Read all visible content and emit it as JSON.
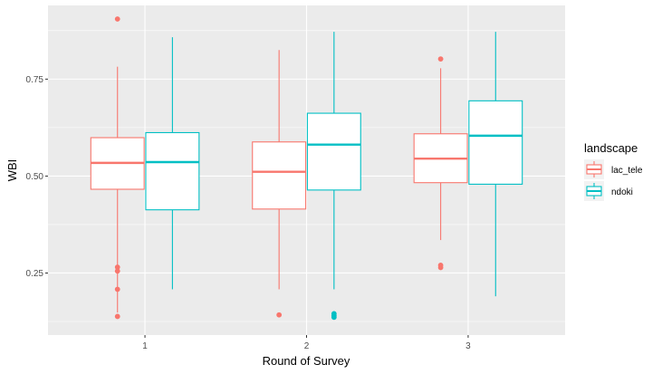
{
  "chart_data": {
    "type": "boxplot",
    "xlabel": "Round of Survey",
    "ylabel": "WBI",
    "categories": [
      "1",
      "2",
      "3"
    ],
    "ylim": [
      0.09,
      0.94
    ],
    "yticks": [
      0.25,
      0.5,
      0.75
    ],
    "ytick_labels": [
      "0.25",
      "0.50",
      "0.75"
    ],
    "grid": true,
    "legend": {
      "title": "landscape",
      "position": "right"
    },
    "series": [
      {
        "name": "lac_tele",
        "color": "#F8766D",
        "boxes": [
          {
            "category": "1",
            "whisker_low": 0.148,
            "q1": 0.466,
            "median": 0.534,
            "q3": 0.599,
            "whisker_high": 0.782,
            "outliers": [
              0.905,
              0.265,
              0.255,
              0.208,
              0.138
            ]
          },
          {
            "category": "2",
            "whisker_low": 0.208,
            "q1": 0.415,
            "median": 0.511,
            "q3": 0.588,
            "whisker_high": 0.825,
            "outliers": [
              0.142
            ]
          },
          {
            "category": "3",
            "whisker_low": 0.335,
            "q1": 0.483,
            "median": 0.545,
            "q3": 0.609,
            "whisker_high": 0.778,
            "outliers": [
              0.802,
              0.27,
              0.264
            ]
          }
        ]
      },
      {
        "name": "ndoki",
        "color": "#00BFC4",
        "boxes": [
          {
            "category": "1",
            "whisker_low": 0.208,
            "q1": 0.413,
            "median": 0.536,
            "q3": 0.612,
            "whisker_high": 0.858,
            "outliers": []
          },
          {
            "category": "2",
            "whisker_low": 0.208,
            "q1": 0.464,
            "median": 0.581,
            "q3": 0.662,
            "whisker_high": 0.872,
            "outliers": [
              0.145,
              0.14,
              0.136
            ]
          },
          {
            "category": "3",
            "whisker_low": 0.19,
            "q1": 0.479,
            "median": 0.604,
            "q3": 0.694,
            "whisker_high": 0.872,
            "outliers": []
          }
        ]
      }
    ]
  }
}
